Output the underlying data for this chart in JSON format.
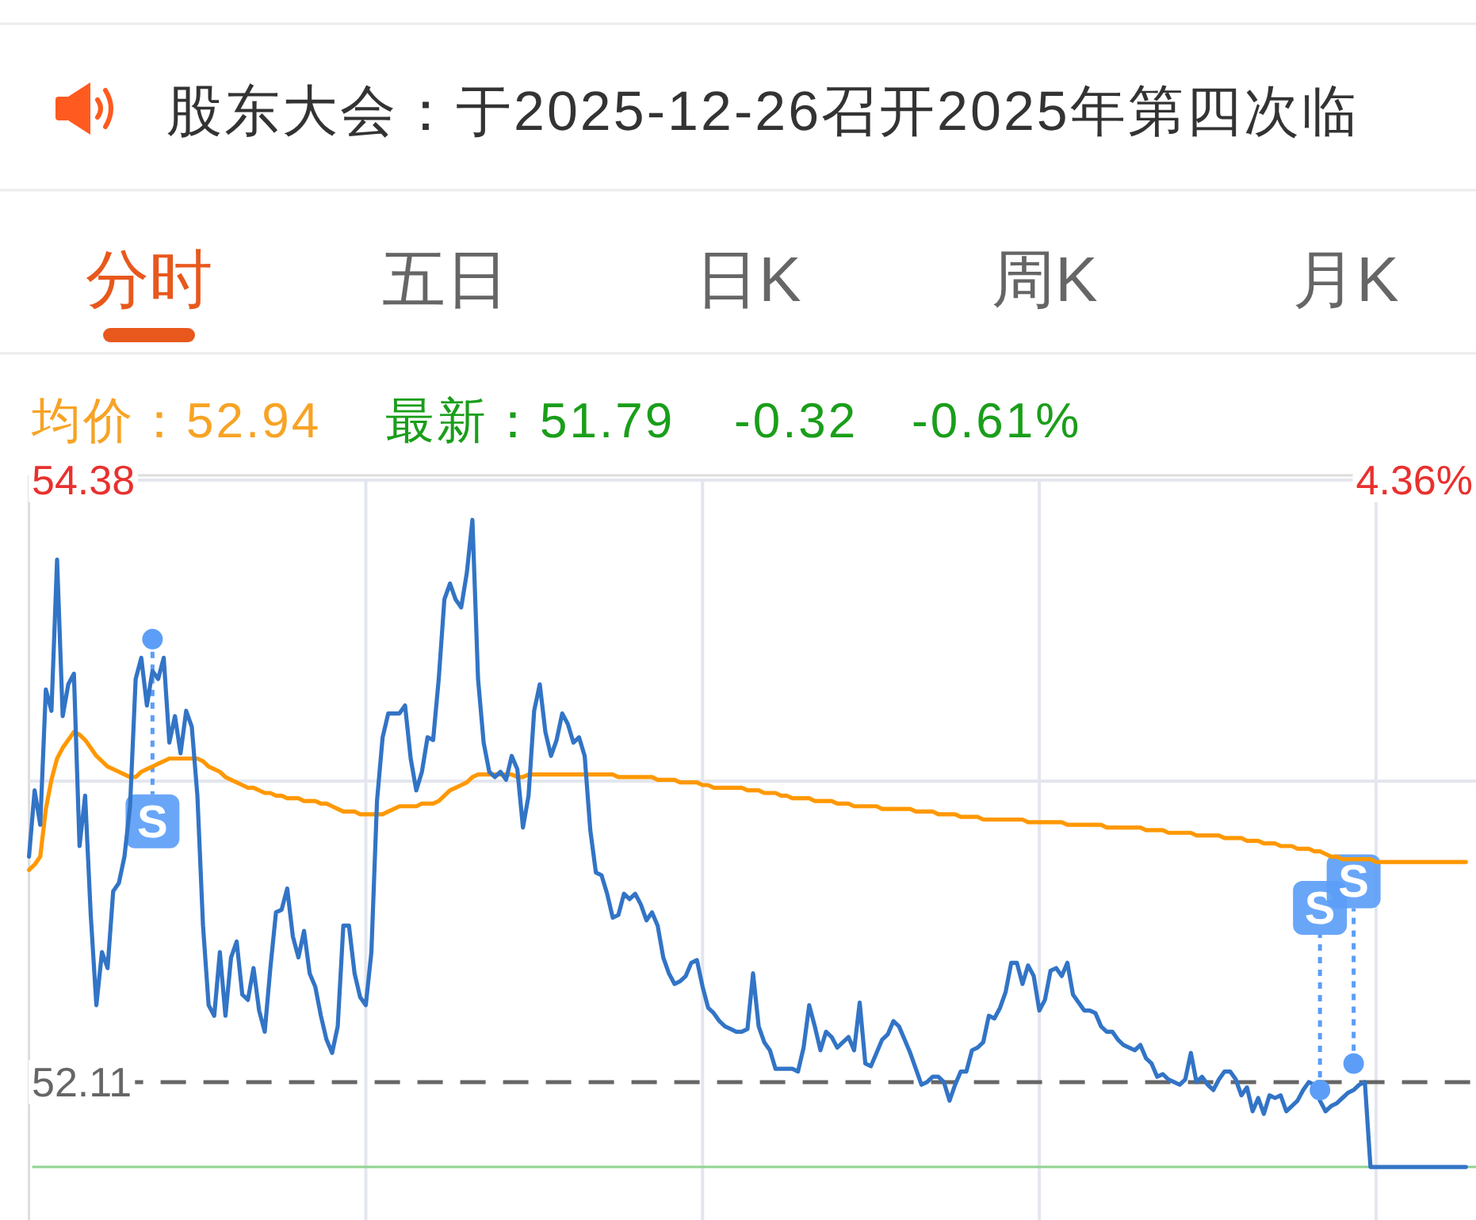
{
  "chart_data": {
    "type": "line",
    "title": "股东大会：于2025-12-26召开2025年第四次临",
    "annotations": [
      "分时",
      "五日",
      "日K",
      "周K",
      "月K",
      "均价：52.94",
      "最新：51.79",
      "-0.32",
      "-0.61%",
      "4.36%"
    ],
    "categories": [
      null,
      null,
      null,
      null,
      null,
      null,
      null,
      null,
      null,
      null,
      null,
      null,
      null,
      null,
      null,
      null,
      null,
      null,
      null,
      null,
      null,
      null,
      null,
      null,
      null,
      null,
      null,
      null,
      null,
      null,
      null,
      null,
      null,
      null,
      null,
      null,
      null,
      null,
      null,
      null,
      null,
      null,
      null,
      null,
      null,
      null,
      null,
      null,
      null,
      null,
      null,
      null,
      null,
      null,
      null,
      null,
      null,
      null,
      null,
      null,
      null,
      null,
      null,
      null,
      null,
      null,
      null,
      null,
      null,
      null,
      null,
      null,
      null,
      null,
      null,
      null,
      null,
      null,
      null,
      null,
      null,
      null,
      null,
      null,
      null,
      null,
      null,
      null,
      null,
      null,
      null,
      null,
      null,
      null,
      null,
      null,
      null,
      null,
      null,
      null,
      null,
      null,
      null,
      null,
      null,
      null,
      null,
      null,
      null,
      null,
      null,
      null,
      null,
      null,
      null,
      null,
      null,
      null,
      null,
      null,
      null,
      null,
      null,
      null,
      null,
      null,
      null,
      null,
      null,
      null,
      null,
      null,
      null,
      null,
      null,
      null,
      null,
      null,
      null,
      null,
      null,
      null,
      null,
      null,
      null,
      null,
      null,
      null,
      null,
      null,
      null,
      null,
      null,
      null,
      null,
      null,
      null,
      null,
      null,
      null,
      null,
      null,
      null,
      null,
      null,
      null,
      null,
      null,
      null,
      null,
      null,
      null,
      null,
      null,
      null,
      null,
      null,
      null,
      null,
      null,
      null,
      null,
      null,
      null,
      null,
      null,
      null,
      null,
      null,
      null,
      null,
      null,
      null,
      null,
      null,
      null,
      null,
      null,
      null,
      null,
      null,
      null,
      null,
      null,
      null,
      null,
      null,
      null,
      null,
      null,
      null,
      null,
      null,
      null,
      null,
      null,
      null,
      null,
      null,
      null,
      null,
      null,
      null,
      null,
      null,
      null,
      null,
      null,
      null,
      null,
      null,
      null,
      null,
      null,
      null,
      null,
      null,
      null,
      null,
      null,
      null,
      null,
      null,
      null,
      null,
      null,
      null,
      null,
      null,
      null,
      null,
      null,
      null,
      null,
      null,
      null,
      null
    ],
    "series": [
      {
        "color": "#ff9800",
        "values": [
          52.91,
          52.93,
          52.96,
          53.14,
          53.25,
          53.33,
          53.37,
          53.4,
          53.43,
          53.42,
          53.4,
          53.37,
          53.34,
          53.32,
          53.3,
          53.29,
          53.28,
          53.27,
          53.26,
          53.26,
          53.28,
          53.29,
          53.3,
          53.31,
          53.32,
          53.33,
          53.33,
          53.33,
          53.33,
          53.33,
          53.33,
          53.32,
          53.3,
          53.29,
          53.28,
          53.26,
          53.25,
          53.24,
          53.23,
          53.22,
          53.22,
          53.21,
          53.2,
          53.2,
          53.19,
          53.19,
          53.18,
          53.18,
          53.18,
          53.17,
          53.17,
          53.17,
          53.16,
          53.16,
          53.15,
          53.14,
          53.13,
          53.13,
          53.13,
          53.12,
          53.12,
          53.12,
          53.12,
          53.12,
          53.13,
          53.14,
          53.15,
          53.15,
          53.15,
          53.15,
          53.16,
          53.16,
          53.16,
          53.17,
          53.19,
          53.21,
          53.22,
          53.23,
          53.24,
          53.26,
          53.27,
          53.27,
          53.27,
          53.27,
          53.27,
          53.27,
          53.27,
          53.26,
          53.26,
          53.27,
          53.27,
          53.27,
          53.27,
          53.27,
          53.27,
          53.27,
          53.27,
          53.27,
          53.27,
          53.27,
          53.27,
          53.27,
          53.27,
          53.27,
          53.27,
          53.26,
          53.26,
          53.26,
          53.26,
          53.26,
          53.26,
          53.26,
          53.25,
          53.25,
          53.25,
          53.25,
          53.24,
          53.24,
          53.24,
          53.24,
          53.23,
          53.23,
          53.22,
          53.22,
          53.22,
          53.22,
          53.22,
          53.22,
          53.21,
          53.21,
          53.21,
          53.2,
          53.2,
          53.2,
          53.19,
          53.19,
          53.18,
          53.18,
          53.18,
          53.18,
          53.17,
          53.17,
          53.17,
          53.17,
          53.16,
          53.16,
          53.16,
          53.15,
          53.15,
          53.15,
          53.15,
          53.15,
          53.14,
          53.14,
          53.14,
          53.14,
          53.14,
          53.14,
          53.13,
          53.13,
          53.13,
          53.13,
          53.12,
          53.12,
          53.12,
          53.12,
          53.11,
          53.11,
          53.11,
          53.11,
          53.1,
          53.1,
          53.1,
          53.1,
          53.1,
          53.1,
          53.1,
          53.1,
          53.09,
          53.09,
          53.09,
          53.09,
          53.09,
          53.09,
          53.09,
          53.08,
          53.08,
          53.08,
          53.08,
          53.08,
          53.08,
          53.08,
          53.07,
          53.07,
          53.07,
          53.07,
          53.07,
          53.07,
          53.07,
          53.06,
          53.06,
          53.06,
          53.06,
          53.05,
          53.05,
          53.05,
          53.05,
          53.05,
          53.04,
          53.04,
          53.04,
          53.04,
          53.04,
          53.03,
          53.03,
          53.03,
          53.03,
          53.02,
          53.02,
          53.02,
          53.01,
          53.01,
          53.01,
          53.0,
          53.0,
          53.0,
          52.99,
          52.99,
          52.99,
          52.98,
          52.98,
          52.97,
          52.96,
          52.96,
          52.95,
          52.95,
          52.95,
          52.95,
          52.95,
          52.95,
          52.94,
          52.94,
          52.94,
          52.94,
          52.94,
          52.94,
          52.94,
          52.94,
          52.94,
          52.94,
          52.94,
          52.94,
          52.94,
          52.94,
          52.94,
          52.94,
          52.94
        ]
      },
      {
        "color": "#3274c6",
        "values": [
          52.96,
          53.21,
          53.08,
          53.59,
          53.51,
          54.08,
          53.49,
          53.61,
          53.65,
          53.0,
          53.19,
          52.74,
          52.4,
          52.6,
          52.54,
          52.83,
          52.86,
          52.96,
          53.15,
          53.63,
          53.71,
          53.53,
          53.66,
          53.63,
          53.71,
          53.39,
          53.49,
          53.35,
          53.51,
          53.45,
          53.19,
          52.7,
          52.4,
          52.36,
          52.6,
          52.36,
          52.58,
          52.64,
          52.44,
          52.42,
          52.54,
          52.38,
          52.3,
          52.54,
          52.75,
          52.76,
          52.84,
          52.66,
          52.58,
          52.68,
          52.52,
          52.47,
          52.36,
          52.27,
          52.22,
          52.32,
          52.7,
          52.7,
          52.52,
          52.43,
          52.4,
          52.6,
          53.17,
          53.41,
          53.5,
          53.5,
          53.5,
          53.53,
          53.33,
          53.21,
          53.28,
          53.41,
          53.4,
          53.63,
          53.93,
          53.99,
          53.93,
          53.9,
          54.03,
          54.23,
          53.63,
          53.39,
          53.28,
          53.26,
          53.28,
          53.25,
          53.34,
          53.29,
          53.07,
          53.19,
          53.51,
          53.61,
          53.43,
          53.34,
          53.4,
          53.5,
          53.46,
          53.39,
          53.41,
          53.34,
          53.06,
          52.9,
          52.89,
          52.82,
          52.73,
          52.74,
          52.82,
          52.8,
          52.82,
          52.78,
          52.72,
          52.75,
          52.7,
          52.58,
          52.52,
          52.48,
          52.49,
          52.51,
          52.56,
          52.57,
          52.47,
          52.39,
          52.37,
          52.34,
          52.32,
          52.31,
          52.3,
          52.3,
          52.31,
          52.52,
          52.32,
          52.26,
          52.23,
          52.16,
          52.16,
          52.16,
          52.16,
          52.15,
          52.24,
          52.4,
          52.32,
          52.23,
          52.3,
          52.28,
          52.24,
          52.26,
          52.28,
          52.23,
          52.41,
          52.18,
          52.17,
          52.22,
          52.27,
          52.29,
          52.34,
          52.32,
          52.27,
          52.22,
          52.16,
          52.1,
          52.11,
          52.13,
          52.13,
          52.11,
          52.04,
          52.1,
          52.15,
          52.15,
          52.23,
          52.24,
          52.26,
          52.36,
          52.35,
          52.39,
          52.45,
          52.56,
          52.56,
          52.48,
          52.55,
          52.51,
          52.38,
          52.42,
          52.53,
          52.54,
          52.51,
          52.56,
          52.44,
          52.41,
          52.38,
          52.38,
          52.37,
          52.32,
          52.3,
          52.3,
          52.27,
          52.25,
          52.24,
          52.23,
          52.25,
          52.2,
          52.18,
          52.13,
          52.14,
          52.12,
          52.11,
          52.1,
          52.12,
          52.22,
          52.11,
          52.13,
          52.1,
          52.08,
          52.12,
          52.15,
          52.15,
          52.12,
          52.06,
          52.09,
          52.0,
          52.05,
          51.99,
          52.06,
          52.05,
          52.06,
          52.0,
          52.02,
          52.04,
          52.08,
          52.11,
          52.1,
          52.04,
          52.0,
          52.02,
          52.03,
          52.05,
          52.07,
          52.08,
          52.1,
          52.11,
          51.79,
          51.79,
          51.79,
          51.79,
          51.79,
          51.79,
          51.79,
          51.79,
          51.79,
          51.79,
          51.79,
          51.79,
          51.79,
          51.79,
          51.79,
          51.79,
          51.79,
          51.79
        ]
      },
      {
        "type": "scatter",
        "name": "S",
        "color": "#5c9ef7",
        "marker": "circle",
        "values": [
          null,
          null,
          null,
          null,
          null,
          null,
          null,
          null,
          null,
          null,
          null,
          null,
          null,
          null,
          null,
          null,
          null,
          null,
          null,
          null,
          null,
          null,
          53.78,
          null,
          null,
          null,
          null,
          null,
          null,
          null,
          null,
          null,
          null,
          null,
          null,
          null,
          null,
          null,
          null,
          null,
          null,
          null,
          null,
          null,
          null,
          null,
          null,
          null,
          null,
          null,
          null,
          null,
          null,
          null,
          null,
          null,
          null,
          null,
          null,
          null,
          null,
          null,
          null,
          null,
          null,
          null,
          null,
          null,
          null,
          null,
          null,
          null,
          null,
          null,
          null,
          null,
          null,
          null,
          null,
          null,
          null,
          null,
          null,
          null,
          null,
          null,
          null,
          null,
          null,
          null,
          null,
          null,
          null,
          null,
          null,
          null,
          null,
          null,
          null,
          null,
          null,
          null,
          null,
          null,
          null,
          null,
          null,
          null,
          null,
          null,
          null,
          null,
          null,
          null,
          null,
          null,
          null,
          null,
          null,
          null,
          null,
          null,
          null,
          null,
          null,
          null,
          null,
          null,
          null,
          null,
          null,
          null,
          null,
          null,
          null,
          null,
          null,
          null,
          null,
          null,
          null,
          null,
          null,
          null,
          null,
          null,
          null,
          null,
          null,
          null,
          null,
          null,
          null,
          null,
          null,
          null,
          null,
          null,
          null,
          null,
          null,
          null,
          null,
          null,
          null,
          null,
          null,
          null,
          null,
          null,
          null,
          null,
          null,
          null,
          null,
          null,
          null,
          null,
          null,
          null,
          null,
          null,
          null,
          null,
          null,
          null,
          null,
          null,
          null,
          null,
          null,
          null,
          null,
          null,
          null,
          null,
          null,
          null,
          null,
          null,
          null,
          null,
          null,
          null,
          null,
          null,
          null,
          null,
          null,
          null,
          null,
          null,
          null,
          null,
          null,
          null,
          null,
          null,
          null,
          null,
          null,
          null,
          null,
          null,
          null,
          null,
          null,
          null,
          null,
          null,
          52.08,
          null,
          null,
          null,
          null,
          null,
          52.18,
          null,
          null,
          null,
          null,
          null,
          null,
          null,
          null,
          null,
          null,
          null,
          null,
          null,
          null,
          null,
          null,
          null,
          null,
          null,
          null
        ]
      }
    ],
    "ylim": [
      51.59,
      54.38
    ],
    "yticks": [
      54.38,
      {
        "value": 53.245,
        "label": null
      },
      52.11
    ],
    "ref_lines": [
      {
        "axis": "y",
        "value": 52.11,
        "line_style": "dashed",
        "color": "#666666"
      },
      {
        "axis": "y",
        "value": 51.79,
        "color": "#8fd48f"
      }
    ],
    "grid": true
  }
}
